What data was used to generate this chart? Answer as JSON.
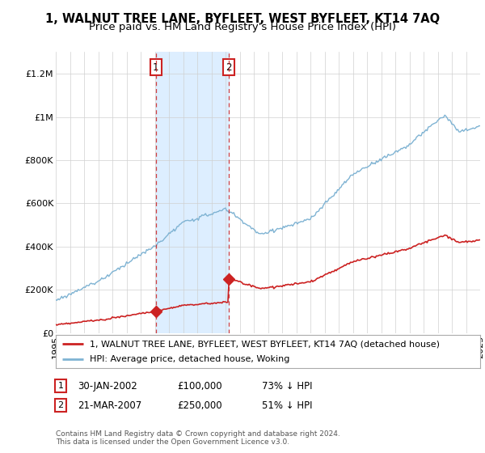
{
  "title": "1, WALNUT TREE LANE, BYFLEET, WEST BYFLEET, KT14 7AQ",
  "subtitle": "Price paid vs. HM Land Registry's House Price Index (HPI)",
  "hpi_color": "#7fb3d3",
  "price_color": "#cc2222",
  "shade_color": "#ddeeff",
  "transaction1_date": 2002.08,
  "transaction1_price": 100000,
  "transaction1_label": "1",
  "transaction2_date": 2007.22,
  "transaction2_price": 250000,
  "transaction2_label": "2",
  "legend_entry1": "1, WALNUT TREE LANE, BYFLEET, WEST BYFLEET, KT14 7AQ (detached house)",
  "legend_entry2": "HPI: Average price, detached house, Woking",
  "table_row1": [
    "1",
    "30-JAN-2002",
    "£100,000",
    "73% ↓ HPI"
  ],
  "table_row2": [
    "2",
    "21-MAR-2007",
    "£250,000",
    "51% ↓ HPI"
  ],
  "footer": "Contains HM Land Registry data © Crown copyright and database right 2024.\nThis data is licensed under the Open Government Licence v3.0.",
  "title_fontsize": 10.5,
  "subtitle_fontsize": 9.5,
  "tick_fontsize": 8,
  "legend_fontsize": 8,
  "table_fontsize": 8.5,
  "footer_fontsize": 6.5,
  "background_color": "#ffffff",
  "xstart": 1995,
  "xend": 2025,
  "ylim": [
    0,
    1300000
  ],
  "yticks": [
    0,
    200000,
    400000,
    600000,
    800000,
    1000000,
    1200000
  ],
  "ytick_labels": [
    "£0",
    "£200K",
    "£400K",
    "£600K",
    "£800K",
    "£1M",
    "£1.2M"
  ]
}
